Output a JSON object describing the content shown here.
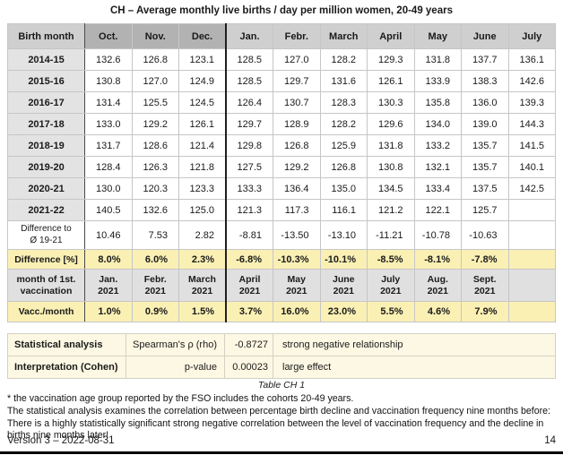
{
  "title": "CH – Average monthly live births / day per million women, 20-49 years",
  "main_table": {
    "header": {
      "label": "Birth month",
      "months": [
        "Oct.",
        "Nov.",
        "Dec.",
        "Jan.",
        "Febr.",
        "March",
        "April",
        "May",
        "June",
        "July"
      ]
    },
    "year_rows": [
      {
        "label": "2014-15",
        "values": [
          "132.6",
          "126.8",
          "123.1",
          "128.5",
          "127.0",
          "128.2",
          "129.3",
          "131.8",
          "137.7",
          "136.1"
        ]
      },
      {
        "label": "2015-16",
        "values": [
          "130.8",
          "127.0",
          "124.9",
          "128.5",
          "129.7",
          "131.6",
          "126.1",
          "133.9",
          "138.3",
          "142.6"
        ]
      },
      {
        "label": "2016-17",
        "values": [
          "131.4",
          "125.5",
          "124.5",
          "126.4",
          "130.7",
          "128.3",
          "130.3",
          "135.8",
          "136.0",
          "139.3"
        ]
      },
      {
        "label": "2017-18",
        "values": [
          "133.0",
          "129.2",
          "126.1",
          "129.7",
          "128.9",
          "128.2",
          "129.6",
          "134.0",
          "139.0",
          "144.3"
        ]
      },
      {
        "label": "2018-19",
        "values": [
          "131.7",
          "128.6",
          "121.4",
          "129.8",
          "126.8",
          "125.9",
          "131.8",
          "133.2",
          "135.7",
          "141.5"
        ]
      },
      {
        "label": "2019-20",
        "values": [
          "128.4",
          "126.3",
          "121.8",
          "127.5",
          "129.2",
          "126.8",
          "130.8",
          "132.1",
          "135.7",
          "140.1"
        ]
      },
      {
        "label": "2020-21",
        "values": [
          "130.0",
          "120.3",
          "123.3",
          "133.3",
          "136.4",
          "135.0",
          "134.5",
          "133.4",
          "137.5",
          "142.5"
        ]
      },
      {
        "label": "2021-22",
        "values": [
          "140.5",
          "132.6",
          "125.0",
          "121.3",
          "117.3",
          "116.1",
          "121.2",
          "122.1",
          "125.7",
          ""
        ]
      }
    ],
    "diff_row": {
      "label": "Difference to\nØ 19-21",
      "values": [
        "10.46",
        "7.53",
        "2.82",
        "-8.81",
        "-13.50",
        "-13.10",
        "-11.21",
        "-10.78",
        "-10.63",
        ""
      ]
    },
    "diff_pct_row": {
      "label": "Difference [%]",
      "values": [
        "8.0%",
        "6.0%",
        "2.3%",
        "-6.8%",
        "-10.3%",
        "-10.1%",
        "-8.5%",
        "-8.1%",
        "-7.8%",
        ""
      ]
    },
    "vacc_header_row": {
      "label": "month of 1st.\nvaccination",
      "values": [
        "Jan.\n2021",
        "Febr.\n2021",
        "March\n2021",
        "April\n2021",
        "May\n2021",
        "June\n2021",
        "July\n2021",
        "Aug.\n2021",
        "Sept.\n2021",
        ""
      ]
    },
    "vacc_pct_row": {
      "label": "Vacc./month",
      "values": [
        "1.0%",
        "0.9%",
        "1.5%",
        "3.7%",
        "16.0%",
        "23.0%",
        "5.5%",
        "4.6%",
        "7.9%",
        ""
      ]
    }
  },
  "stats_table": {
    "rows": [
      {
        "label": "Statistical analysis",
        "metric": "Spearman's ρ (rho)",
        "value": "-0.8727",
        "interpretation": "strong negative relationship"
      },
      {
        "label": "Interpretation (Cohen)",
        "metric": "p-value",
        "value": "0.00023",
        "interpretation": "large effect"
      }
    ]
  },
  "caption": "Table CH 1",
  "footnote_lines": [
    "* the vaccination age group reported by the FSO includes the cohorts 20-49 years.",
    "The statistical analysis examines the correlation between percentage birth decline and vaccination frequency nine months before:",
    "There is a highly statistically significant strong negative correlation between the level of vaccination frequency and the decline in",
    "births nine months later!"
  ],
  "footer": {
    "version": "Version 3 – 2022-08-31",
    "page": "14"
  },
  "colors": {
    "header_gray": "#cfcfcf",
    "header_dark_gray": "#b2b2b2",
    "row_label_gray": "#e3e3e3",
    "highlight_yellow": "#faf0b4",
    "stats_cream": "#fdf8e3"
  }
}
